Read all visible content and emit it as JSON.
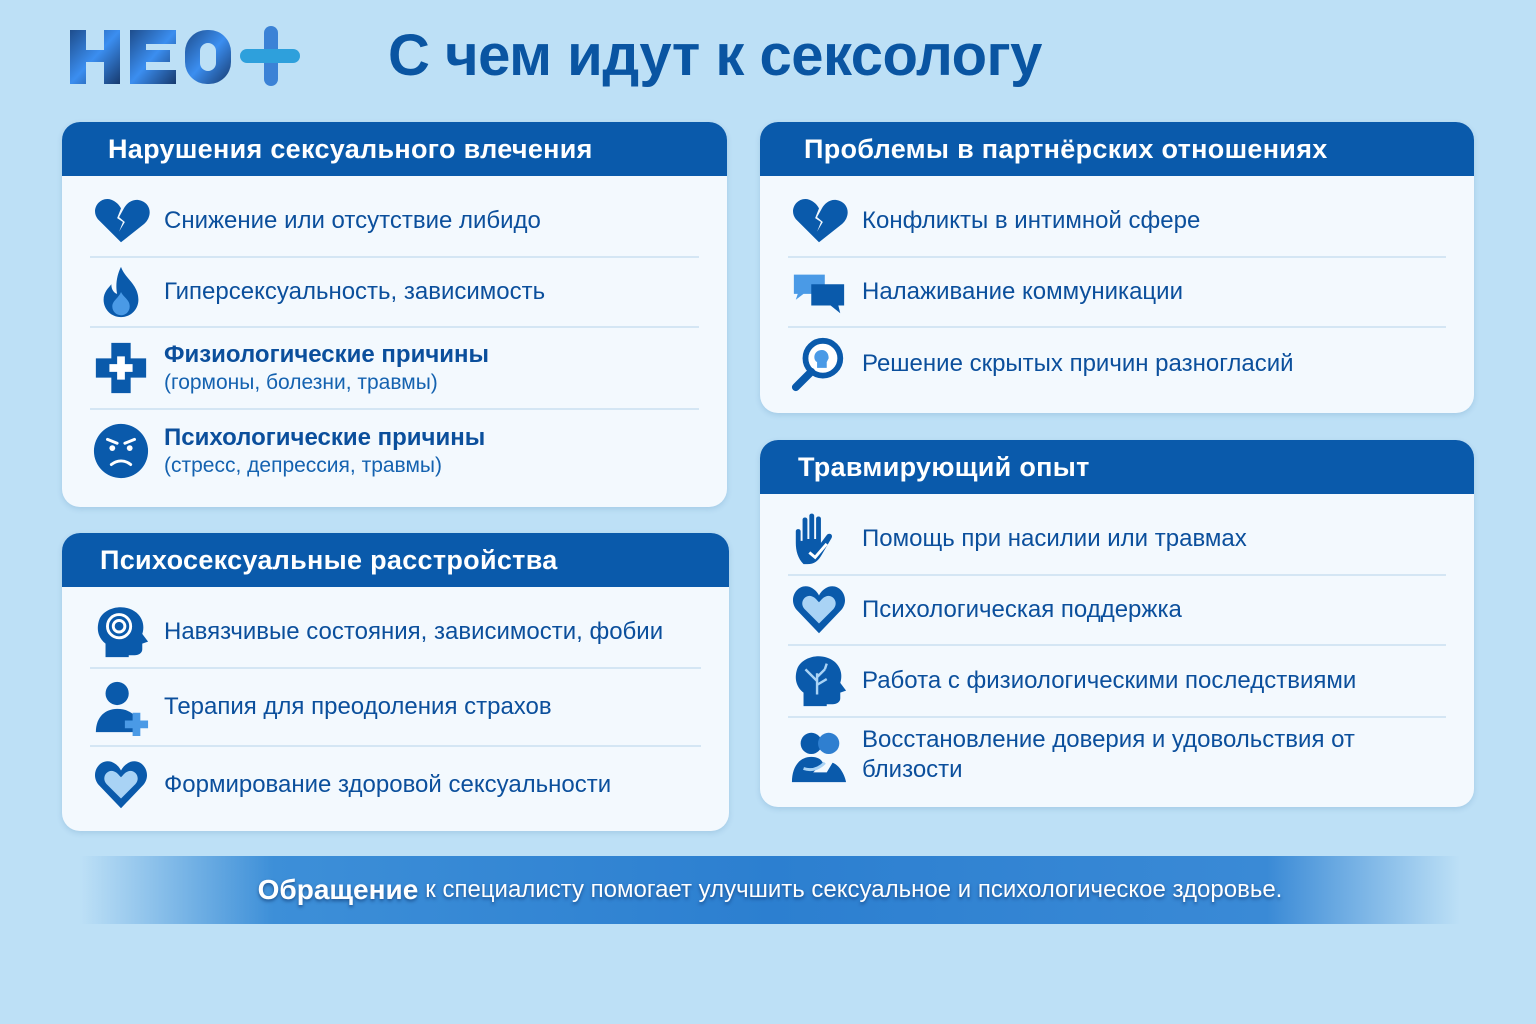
{
  "logo": {
    "text": "НЕО+"
  },
  "header": {
    "title": "С чем идут к сексологу"
  },
  "colors": {
    "primary": "#0a5aab",
    "background": "#bde0f6",
    "card": "#f3f9fe",
    "text": "#0b4f9c"
  },
  "cards": [
    {
      "title": "Нарушения сексуального влечения",
      "items": [
        {
          "icon": "broken-heart-icon",
          "label": "Снижение или отсутствие либидо"
        },
        {
          "icon": "flame-icon",
          "label": "Гиперсексуальность, зависимость"
        },
        {
          "icon": "medical-cross-icon",
          "label": "Физиологические причины",
          "sub": "(гормоны, болезни, травмы)"
        },
        {
          "icon": "sad-face-icon",
          "label": "Психологические причины",
          "sub": "(стресс, депрессия, травмы)"
        }
      ]
    },
    {
      "title": "Психосексуальные расстройства",
      "items": [
        {
          "icon": "spiral-head-icon",
          "label": "Навязчивые состояния, зависимости, фобии"
        },
        {
          "icon": "person-plus-icon",
          "label": "Терапия для преодоления страхов"
        },
        {
          "icon": "heart-icon",
          "label": "Формирование здоровой сексуальности"
        }
      ]
    },
    {
      "title": "Проблемы в партнёрских отношениях",
      "items": [
        {
          "icon": "broken-heart-icon",
          "label": "Конфликты в интимной сфере"
        },
        {
          "icon": "chat-bubbles-icon",
          "label": "Налаживание коммуникации"
        },
        {
          "icon": "magnifier-head-icon",
          "label": "Решение скрытых причин разногласий"
        }
      ]
    },
    {
      "title": "Травмирующий опыт",
      "items": [
        {
          "icon": "hand-icon",
          "label": "Помощь при насилии или травмах"
        },
        {
          "icon": "heart-icon",
          "label": "Психологическая поддержка"
        },
        {
          "icon": "brain-tree-head-icon",
          "label": "Работа с физиологическими последствиями"
        },
        {
          "icon": "embracing-couple-icon",
          "label": "Восстановление доверия и удовольствия от близости"
        }
      ]
    }
  ],
  "banner": {
    "lead": "Обращение",
    "text": "к специалисту помогает улучшить сексуальное и психологическое здоровье."
  }
}
